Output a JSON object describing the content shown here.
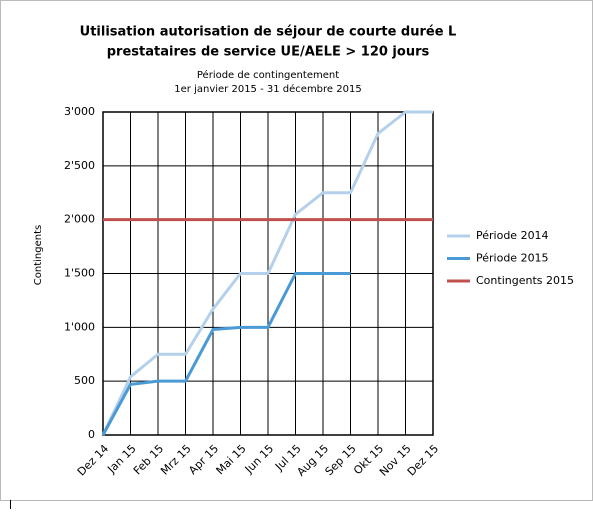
{
  "chart_data": {
    "type": "line",
    "title": [
      "Utilisation autorisation de séjour de courte durée L",
      "prestataires de service UE/AELE > 120 jours"
    ],
    "subtitle": [
      "Période de contingentement",
      "1er janvier 2015 - 31 décembre 2015"
    ],
    "y_label": "Contingents",
    "categories": [
      "Dez 14",
      "Jan 15",
      "Feb 15",
      "Mrz 15",
      "Apr 15",
      "Mai 15",
      "Jun 15",
      "Jul 15",
      "Aug 15",
      "Sep 15",
      "Okt 15",
      "Nov 15",
      "Dez 15"
    ],
    "series": [
      {
        "name": "Période 2014",
        "color": "#b4d0ea",
        "values": [
          0,
          540,
          750,
          750,
          1170,
          1500,
          1500,
          2050,
          2250,
          2250,
          2800,
          3000,
          3000
        ]
      },
      {
        "name": "Période 2015",
        "color": "#4a9ad6",
        "values": [
          0,
          470,
          500,
          500,
          980,
          1000,
          1000,
          1500,
          1500,
          1500,
          null,
          null,
          null
        ]
      },
      {
        "name": "Contingents 2015",
        "color": "#c0504d",
        "values": [
          2000,
          2000,
          2000,
          2000,
          2000,
          2000,
          2000,
          2000,
          2000,
          2000,
          2000,
          2000,
          2000
        ]
      }
    ],
    "ylim": [
      0,
      3000
    ],
    "yticks": [
      0,
      500,
      {
        "value": 1000,
        "label": "1'000"
      },
      {
        "value": 1500,
        "label": "1'500"
      },
      {
        "value": 2000,
        "label": "2'000"
      },
      {
        "value": 2500,
        "label": "2'500"
      },
      {
        "value": 3000,
        "label": "3'000"
      }
    ],
    "grid": true,
    "legend": "right"
  }
}
